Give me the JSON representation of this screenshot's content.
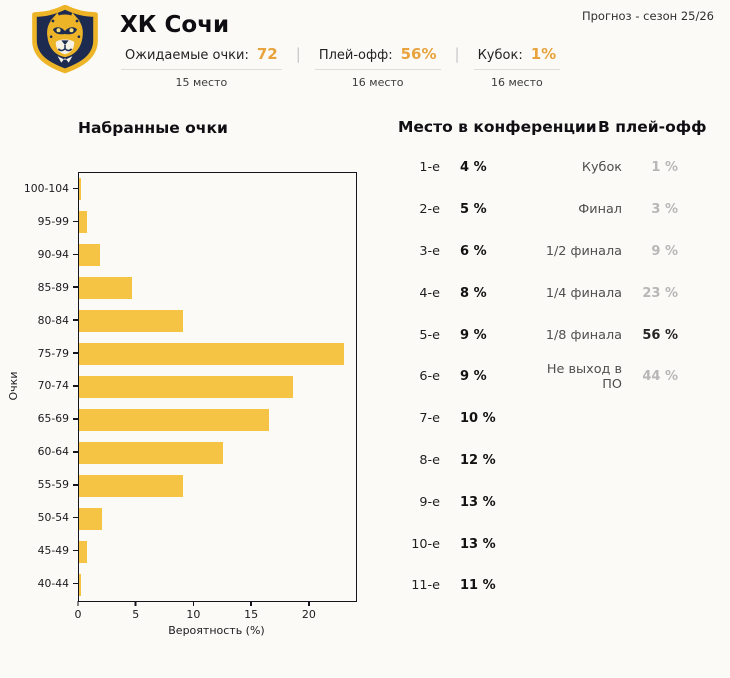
{
  "header": {
    "team_name": "ХК Сочи",
    "forecast_label": "Прогноз - сезон 25/26",
    "stats": [
      {
        "label": "Ожидаемые очки:",
        "value": "72",
        "rank": "15 место"
      },
      {
        "label": "Плей-офф:",
        "value": "56%",
        "rank": "16 место"
      },
      {
        "label": "Кубок:",
        "value": "1%",
        "rank": "16 место"
      }
    ]
  },
  "colors": {
    "accent_gold": "#E8A33D",
    "bar_gold": "#F6C444",
    "navy": "#1D2B50",
    "muted_value": "#B7B7B7"
  },
  "chart_data": {
    "type": "bar",
    "orientation": "horizontal",
    "title": "Набранные очки",
    "xlabel": "Вероятность (%)",
    "ylabel": "Очки",
    "categories": [
      "100-104",
      "95-99",
      "90-94",
      "85-89",
      "80-84",
      "75-79",
      "70-74",
      "65-69",
      "60-64",
      "55-59",
      "50-54",
      "45-49",
      "40-44"
    ],
    "values": [
      0.2,
      0.7,
      1.8,
      4.6,
      9,
      23,
      18.5,
      16.5,
      12.5,
      9,
      2,
      0.7,
      0.2
    ],
    "xlim": [
      0,
      24
    ],
    "xticks": [
      0,
      5,
      10,
      15,
      20
    ],
    "bar_color": "#F6C444",
    "grid": false,
    "legend": "none"
  },
  "conference": {
    "title": "Место в конференции",
    "rows": [
      {
        "label": "1-е",
        "value": "4 %"
      },
      {
        "label": "2-е",
        "value": "5 %"
      },
      {
        "label": "3-е",
        "value": "6 %"
      },
      {
        "label": "4-е",
        "value": "8 %"
      },
      {
        "label": "5-е",
        "value": "9 %"
      },
      {
        "label": "6-е",
        "value": "9 %"
      },
      {
        "label": "7-е",
        "value": "10 %"
      },
      {
        "label": "8-е",
        "value": "12 %"
      },
      {
        "label": "9-е",
        "value": "13 %"
      },
      {
        "label": "10-е",
        "value": "13 %"
      },
      {
        "label": "11-е",
        "value": "11 %"
      }
    ]
  },
  "playoff": {
    "title": "В плей-офф",
    "rows": [
      {
        "label": "Кубок",
        "value": "1 %",
        "muted": true
      },
      {
        "label": "Финал",
        "value": "3 %",
        "muted": true
      },
      {
        "label": "1/2 финала",
        "value": "9 %",
        "muted": true
      },
      {
        "label": "1/4 финала",
        "value": "23 %",
        "muted": true
      },
      {
        "label": "1/8 финала",
        "value": "56 %",
        "muted": false
      },
      {
        "label": "Не выход в ПО",
        "value": "44 %",
        "muted": true
      }
    ]
  }
}
